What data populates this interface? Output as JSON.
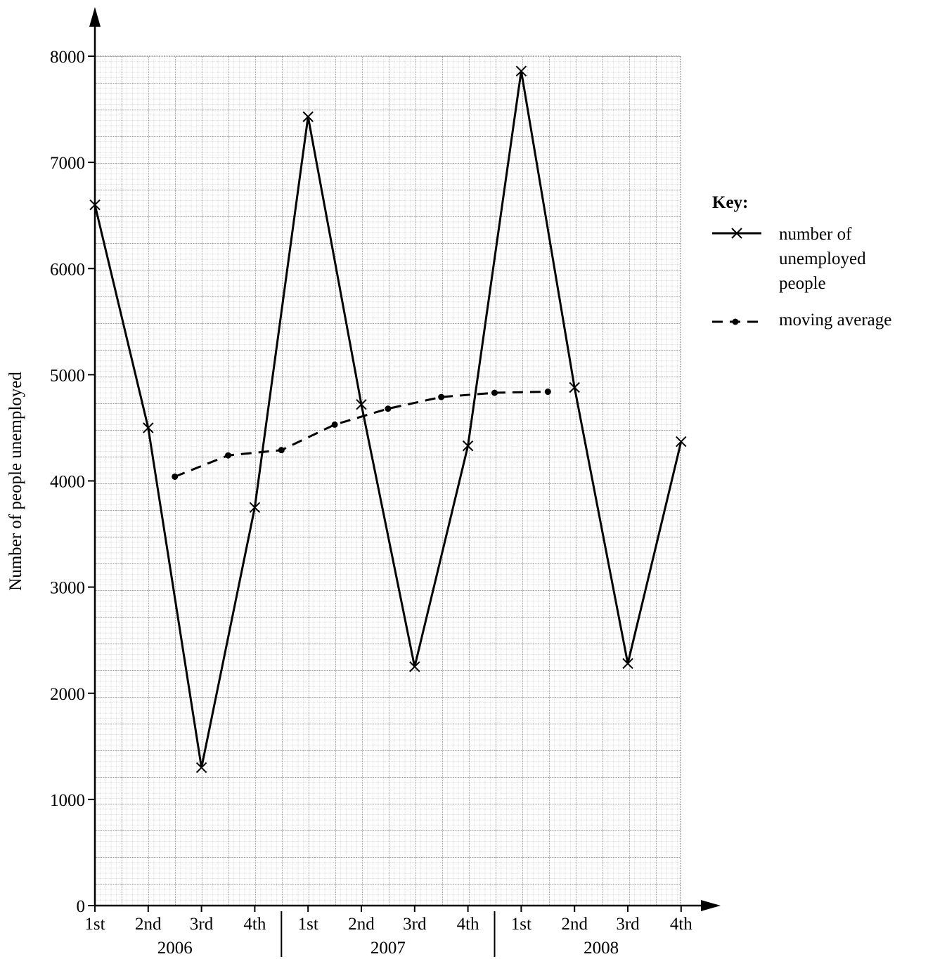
{
  "chart_data": {
    "type": "line",
    "title": "",
    "xlabel": "",
    "ylabel": "Number of people unemployed",
    "ylim": [
      0,
      8000
    ],
    "yticks": [
      0,
      1000,
      2000,
      3000,
      4000,
      5000,
      6000,
      7000,
      8000
    ],
    "grid": true,
    "legend_placement": "right",
    "categories": [
      "1st",
      "2nd",
      "3rd",
      "4th",
      "1st",
      "2nd",
      "3rd",
      "4th",
      "1st",
      "2nd",
      "3rd",
      "4th"
    ],
    "years": [
      {
        "label": "2006",
        "quarters": [
          "1st",
          "2nd",
          "3rd",
          "4th"
        ]
      },
      {
        "label": "2007",
        "quarters": [
          "1st",
          "2nd",
          "3rd",
          "4th"
        ]
      },
      {
        "label": "2008",
        "quarters": [
          "1st",
          "2nd",
          "3rd",
          "4th"
        ]
      }
    ],
    "series": [
      {
        "name": "number of unemployed people",
        "style": "solid",
        "marker": "cross",
        "values": [
          6600,
          4500,
          1300,
          3750,
          7430,
          4720,
          2250,
          4330,
          7860,
          4880,
          2280,
          4370
        ]
      },
      {
        "name": "moving average",
        "style": "dashed",
        "marker": "dot",
        "points": [
          {
            "x": 1.5,
            "y": 4040
          },
          {
            "x": 2.5,
            "y": 4240
          },
          {
            "x": 3.5,
            "y": 4290
          },
          {
            "x": 4.5,
            "y": 4530
          },
          {
            "x": 5.5,
            "y": 4680
          },
          {
            "x": 6.5,
            "y": 4790
          },
          {
            "x": 7.5,
            "y": 4830
          },
          {
            "x": 8.5,
            "y": 4840
          }
        ]
      }
    ],
    "key": {
      "title": "Key:",
      "entries": [
        {
          "lines": [
            "number of",
            "unemployed",
            "people"
          ]
        },
        {
          "lines": [
            "moving average"
          ]
        }
      ]
    }
  }
}
